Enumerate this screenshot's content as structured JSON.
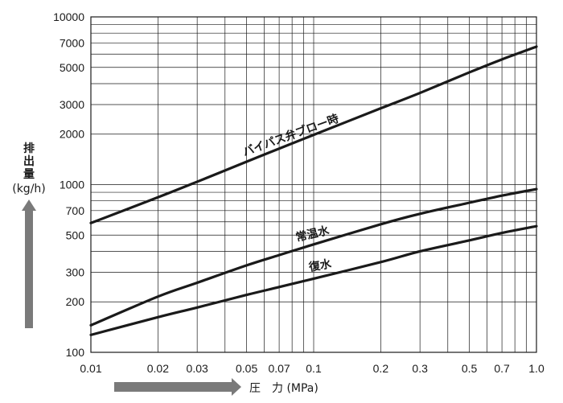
{
  "chart_data": {
    "type": "line",
    "x_scale": "log",
    "y_scale": "log",
    "xlim": [
      0.01,
      1.0
    ],
    "ylim": [
      100,
      10000
    ],
    "grid": true,
    "legend": "none",
    "xlabel": "圧　力 (MPa)",
    "ylabel_chars": [
      "排",
      "出",
      "量"
    ],
    "ylabel_unit": "(kg/h)",
    "x_ticks": [
      0.01,
      0.02,
      0.03,
      0.05,
      0.07,
      0.1,
      0.2,
      0.3,
      0.5,
      0.7,
      1.0
    ],
    "x_tick_labels": [
      "0.01",
      "0.02",
      "0.03",
      "0.05",
      "0.07",
      "0.1",
      "0.2",
      "0.3",
      "0.5",
      "0.7",
      "1.0"
    ],
    "y_ticks": [
      100,
      200,
      300,
      500,
      700,
      1000,
      2000,
      3000,
      5000,
      7000,
      10000
    ],
    "y_tick_labels": [
      "100",
      "200",
      "300",
      "500",
      "700",
      "1000",
      "2000",
      "3000",
      "5000",
      "7000",
      "10000"
    ],
    "series": [
      {
        "name": "バイパス弁ブロー時",
        "x": [
          0.01,
          0.02,
          0.03,
          0.05,
          0.07,
          0.1,
          0.2,
          0.3,
          0.5,
          0.7,
          1.0
        ],
        "y": [
          590,
          840,
          1040,
          1370,
          1640,
          1980,
          2850,
          3520,
          4670,
          5580,
          6650
        ]
      },
      {
        "name": "常温水",
        "x": [
          0.01,
          0.02,
          0.03,
          0.05,
          0.07,
          0.1,
          0.2,
          0.3,
          0.5,
          0.7,
          1.0
        ],
        "y": [
          145,
          215,
          260,
          330,
          380,
          440,
          580,
          670,
          780,
          860,
          940
        ]
      },
      {
        "name": "復水",
        "x": [
          0.01,
          0.02,
          0.03,
          0.05,
          0.07,
          0.1,
          0.2,
          0.3,
          0.5,
          0.7,
          1.0
        ],
        "y": [
          127,
          162,
          185,
          220,
          245,
          275,
          345,
          400,
          465,
          515,
          565
        ]
      }
    ],
    "colors": {
      "curve": "#1a1a1a",
      "grid": "#1a1a1a",
      "arrow": "#7a7a7a"
    }
  }
}
